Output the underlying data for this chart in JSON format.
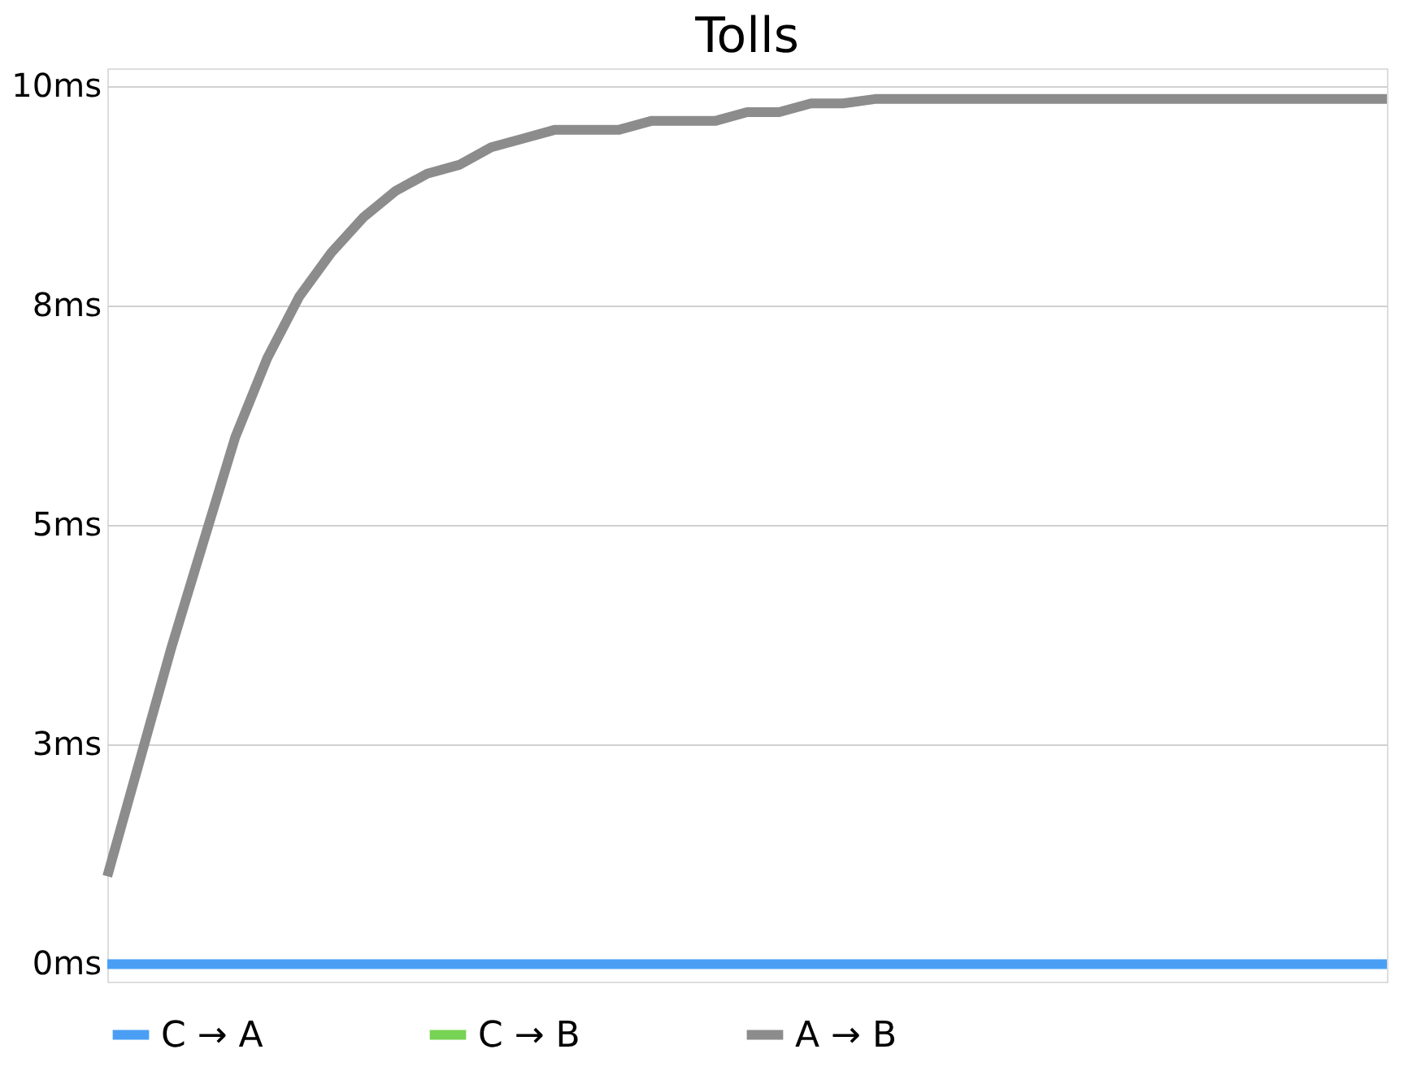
{
  "chart_data": {
    "type": "line",
    "title": "Tolls",
    "categories": [
      null,
      null,
      null,
      null,
      null,
      null,
      null,
      null,
      null,
      null,
      null,
      null,
      null,
      null,
      null,
      null,
      null,
      null,
      null,
      null,
      null,
      null,
      null,
      null,
      null,
      null,
      null,
      null,
      null,
      null,
      null,
      null,
      null,
      null,
      null,
      null,
      null,
      null,
      null,
      null,
      null
    ],
    "series": [
      {
        "name": "C → A",
        "color": "#4a9ff5",
        "values": [
          0,
          0,
          0,
          0,
          0,
          0,
          0,
          0,
          0,
          0,
          0,
          0,
          0,
          0,
          0,
          0,
          0,
          0,
          0,
          0,
          0,
          0,
          0,
          0,
          0,
          0,
          0,
          0,
          0,
          0,
          0,
          0,
          0,
          0,
          0,
          0,
          0,
          0,
          0,
          0,
          0
        ]
      },
      {
        "name": "C → B",
        "color": "#77d354",
        "values": [
          null,
          null,
          null,
          null,
          null,
          null,
          null,
          null,
          null,
          null,
          null,
          null,
          null,
          null,
          null,
          null,
          null,
          null,
          null,
          null,
          null,
          null,
          null,
          null,
          null,
          null,
          null,
          null,
          null,
          null,
          null,
          null,
          null,
          null,
          null,
          null,
          null,
          null,
          null,
          null,
          null
        ]
      },
      {
        "name": "A → B",
        "color": "#8c8c8c",
        "values": [
          1.0,
          2.3,
          3.6,
          4.8,
          6.0,
          6.9,
          7.6,
          8.1,
          8.5,
          8.8,
          9.0,
          9.1,
          9.3,
          9.4,
          9.5,
          9.5,
          9.5,
          9.6,
          9.6,
          9.6,
          9.7,
          9.7,
          9.8,
          9.8,
          9.85,
          9.85,
          9.85,
          9.85,
          9.85,
          9.85,
          9.85,
          9.85,
          9.85,
          9.85,
          9.85,
          9.85,
          9.85,
          9.85,
          9.85,
          9.85,
          9.85
        ]
      }
    ],
    "ylim": [
      -0.2,
      10.2
    ],
    "yticks": [
      {
        "value": 0,
        "label": "0ms"
      },
      {
        "value": 2.5,
        "label": "3ms"
      },
      {
        "value": 5,
        "label": "5ms"
      },
      {
        "value": 7.5,
        "label": "8ms"
      },
      {
        "value": 10,
        "label": "10ms"
      }
    ],
    "grid": "y",
    "legend": "bottom",
    "line_style": "solid"
  }
}
